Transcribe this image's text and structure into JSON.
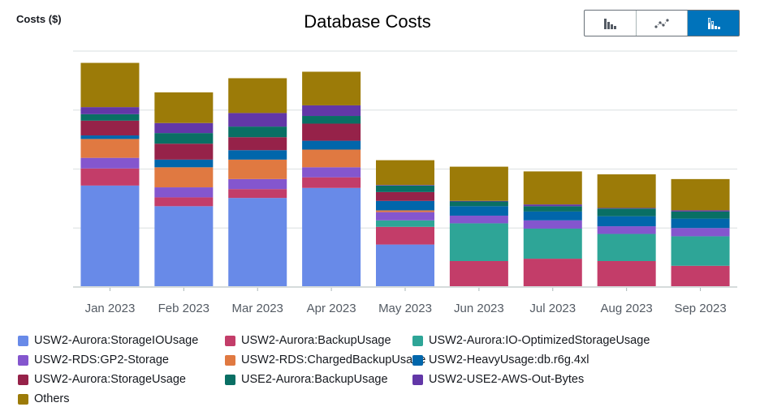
{
  "header": {
    "ylabel": "Costs ($)",
    "title": "Database Costs"
  },
  "view_toggle": {
    "options": [
      {
        "icon": "bar-chart-icon",
        "selected": false
      },
      {
        "icon": "line-chart-icon",
        "selected": false
      },
      {
        "icon": "stacked-bar-chart-icon",
        "selected": true
      }
    ],
    "selected_color": "#0073bb"
  },
  "chart_data": {
    "type": "bar",
    "stacked": true,
    "title": "Database Costs",
    "ylabel": "Costs ($)",
    "xlabel": "",
    "ylim": [
      0,
      4
    ],
    "grid": true,
    "y_tick_labels_shown": false,
    "legend_position": "bottom",
    "categories": [
      "Jan 2023",
      "Feb 2023",
      "Mar 2023",
      "Apr 2023",
      "May 2023",
      "Jun 2023",
      "Jul 2023",
      "Aug 2023",
      "Sep 2023"
    ],
    "series": [
      {
        "name": "USW2-Aurora:StorageIOUsage",
        "color": "#688ae8",
        "values": [
          1.72,
          1.37,
          1.51,
          1.68,
          0.72,
          0,
          0,
          0,
          0
        ]
      },
      {
        "name": "USW2-Aurora:BackupUsage",
        "color": "#c33d69",
        "values": [
          0.29,
          0.15,
          0.15,
          0.18,
          0.3,
          0.44,
          0.48,
          0.44,
          0.36
        ]
      },
      {
        "name": "USW2-Aurora:IO-OptimizedStorageUsage",
        "color": "#2ea597",
        "values": [
          0,
          0,
          0,
          0,
          0.11,
          0.64,
          0.51,
          0.46,
          0.5
        ]
      },
      {
        "name": "USW2-RDS:GP2-Storage",
        "color": "#8456ce",
        "values": [
          0.18,
          0.17,
          0.17,
          0.17,
          0.14,
          0.13,
          0.14,
          0.13,
          0.14
        ]
      },
      {
        "name": "USW2-RDS:ChargedBackupUsage",
        "color": "#e07941",
        "values": [
          0.32,
          0.34,
          0.33,
          0.3,
          0.03,
          0,
          0,
          0,
          0
        ]
      },
      {
        "name": "USW2-HeavyUsage:db.r6g.4xl",
        "color": "#0166ab",
        "values": [
          0.06,
          0.13,
          0.16,
          0.15,
          0.16,
          0.16,
          0.15,
          0.17,
          0.16
        ]
      },
      {
        "name": "USW2-Aurora:StorageUsage",
        "color": "#962249",
        "values": [
          0.25,
          0.27,
          0.22,
          0.29,
          0.15,
          0,
          0,
          0,
          0
        ]
      },
      {
        "name": "USE2-Aurora:BackupUsage",
        "color": "#096f64",
        "values": [
          0.11,
          0.18,
          0.18,
          0.13,
          0.11,
          0.08,
          0.09,
          0.13,
          0.12
        ]
      },
      {
        "name": "USW2-USE2-AWS-Out-Bytes",
        "color": "#6237a7",
        "values": [
          0.12,
          0.17,
          0.23,
          0.18,
          0.01,
          0.01,
          0.03,
          0.01,
          0.02
        ]
      },
      {
        "name": "Others",
        "color": "#9c7b08",
        "values": [
          0.75,
          0.52,
          0.59,
          0.57,
          0.42,
          0.58,
          0.56,
          0.57,
          0.53
        ]
      }
    ]
  }
}
